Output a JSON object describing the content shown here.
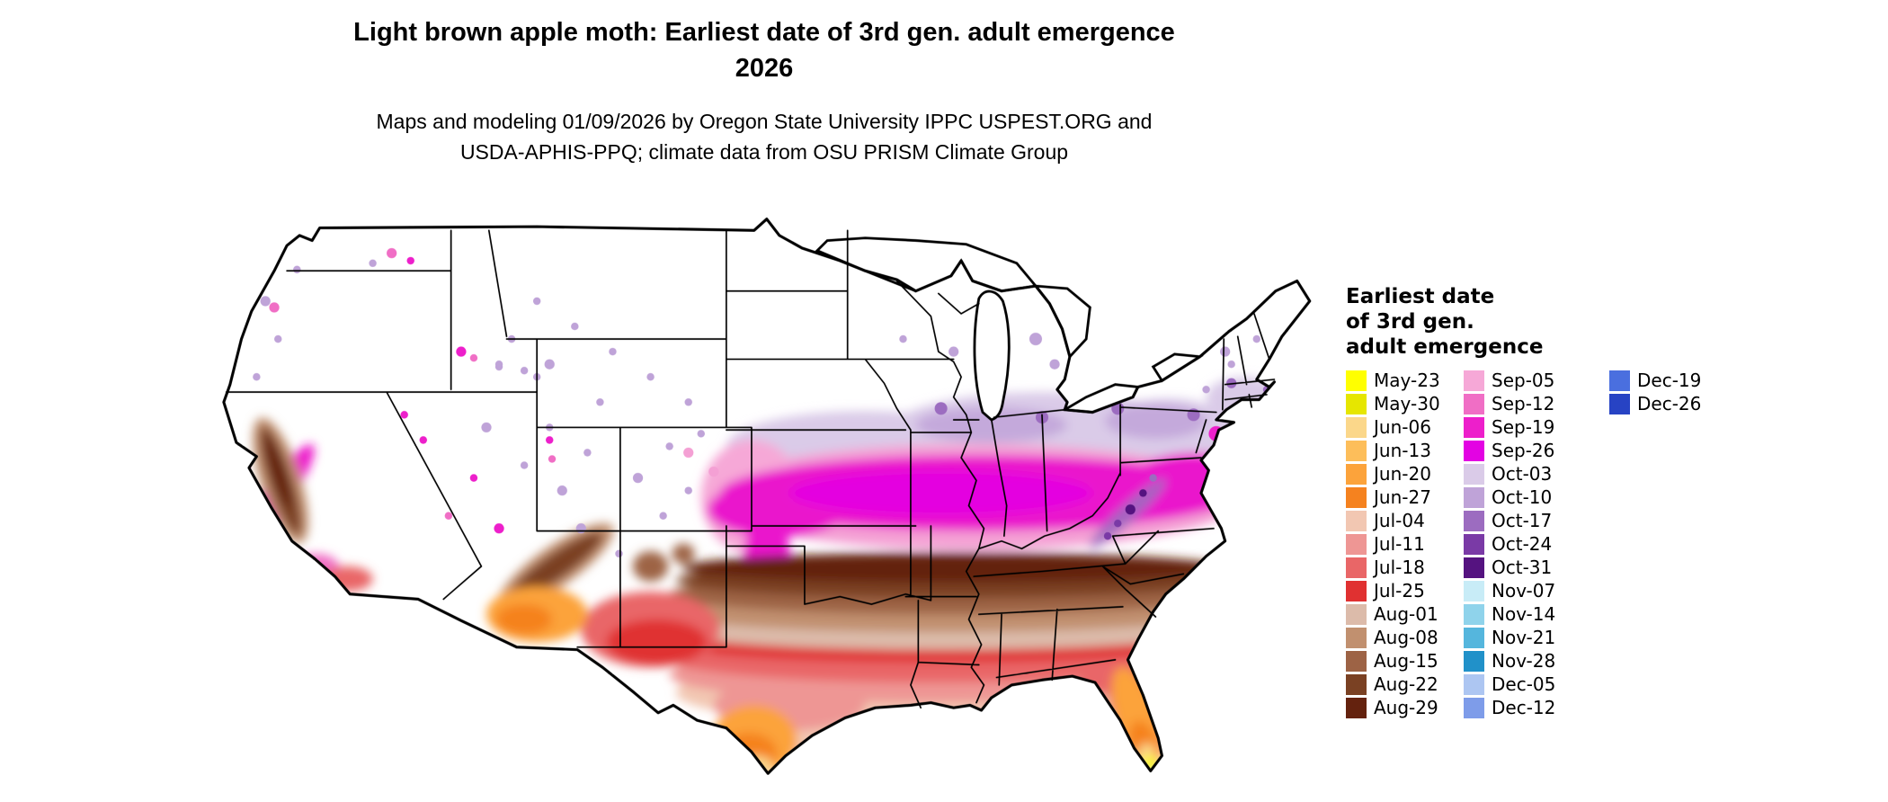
{
  "title": {
    "line1": "Light brown apple moth: Earliest date of 3rd gen. adult emergence",
    "line2": "2026"
  },
  "subtitle": {
    "line1": "Maps and modeling 01/09/2026 by Oregon State University IPPC USPEST.ORG and",
    "line2": "USDA-APHIS-PPQ; climate data from OSU PRISM Climate Group"
  },
  "map": {
    "region": "contiguous-united-states",
    "no_emergence_color": "#FFFFFF"
  },
  "legend": {
    "title_lines": [
      "Earliest date",
      "of 3rd gen.",
      "adult emergence"
    ],
    "columns": [
      {
        "entries": [
          {
            "label": "May-23",
            "color": "#FFFF00"
          },
          {
            "label": "May-30",
            "color": "#E6E600"
          },
          {
            "label": "Jun-06",
            "color": "#FBD78A"
          },
          {
            "label": "Jun-13",
            "color": "#FDBE5A"
          },
          {
            "label": "Jun-20",
            "color": "#FCA33B"
          },
          {
            "label": "Jun-27",
            "color": "#F5821F"
          },
          {
            "label": "Jul-04",
            "color": "#F2C7B2"
          },
          {
            "label": "Jul-11",
            "color": "#EE9694"
          },
          {
            "label": "Jul-18",
            "color": "#E96667"
          },
          {
            "label": "Jul-25",
            "color": "#E03131"
          },
          {
            "label": "Aug-01",
            "color": "#DCBBAA"
          },
          {
            "label": "Aug-08",
            "color": "#C1906F"
          },
          {
            "label": "Aug-15",
            "color": "#9D6345"
          },
          {
            "label": "Aug-22",
            "color": "#7A4123"
          },
          {
            "label": "Aug-29",
            "color": "#64220E"
          }
        ]
      },
      {
        "entries": [
          {
            "label": "Sep-05",
            "color": "#F6A8D7"
          },
          {
            "label": "Sep-12",
            "color": "#F06EC5"
          },
          {
            "label": "Sep-19",
            "color": "#ED1FCB"
          },
          {
            "label": "Sep-26",
            "color": "#E303E3"
          },
          {
            "label": "Oct-03",
            "color": "#DACBE8"
          },
          {
            "label": "Oct-10",
            "color": "#BFA3D8"
          },
          {
            "label": "Oct-17",
            "color": "#9C6CC0"
          },
          {
            "label": "Oct-24",
            "color": "#7A3AA6"
          },
          {
            "label": "Oct-31",
            "color": "#551380"
          },
          {
            "label": "Nov-07",
            "color": "#C8ECF7"
          },
          {
            "label": "Nov-14",
            "color": "#8FD3EB"
          },
          {
            "label": "Nov-21",
            "color": "#55B6DD"
          },
          {
            "label": "Nov-28",
            "color": "#2191C9"
          },
          {
            "label": "Dec-05",
            "color": "#ADC6F2"
          },
          {
            "label": "Dec-12",
            "color": "#7E9CE9"
          }
        ]
      },
      {
        "entries": [
          {
            "label": "Dec-19",
            "color": "#4A6FDF"
          },
          {
            "label": "Dec-26",
            "color": "#2743C4"
          }
        ]
      }
    ]
  }
}
